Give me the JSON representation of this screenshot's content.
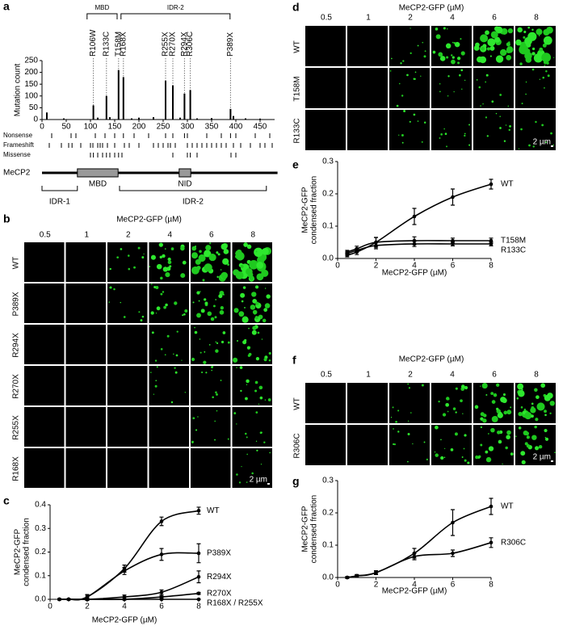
{
  "panel_labels": [
    "a",
    "b",
    "c",
    "d",
    "e",
    "f",
    "g"
  ],
  "chart_data": [
    {
      "type": "bar",
      "ylabel": "Mutation count",
      "x": [
        10,
        45,
        106,
        115,
        133,
        140,
        158,
        168,
        185,
        200,
        230,
        255,
        270,
        285,
        294,
        306,
        320,
        350,
        389,
        395,
        420,
        450
      ],
      "values": [
        30,
        5,
        60,
        8,
        100,
        10,
        210,
        180,
        5,
        8,
        10,
        165,
        145,
        8,
        110,
        125,
        5,
        6,
        45,
        15,
        5,
        4
      ],
      "color": "#000000",
      "xlim": [
        0,
        480
      ],
      "xticks": [
        0,
        50,
        100,
        150,
        200,
        250,
        300,
        350,
        400,
        450
      ],
      "ylim": [
        0,
        250
      ],
      "yticks": [
        0,
        50,
        100,
        150,
        200,
        250
      ],
      "annotations": [
        {
          "text": "R106W",
          "x": 106
        },
        {
          "text": "R133C",
          "x": 133
        },
        {
          "text": "T158M",
          "x": 158
        },
        {
          "text": "R168X",
          "x": 168
        },
        {
          "text": "R255X",
          "x": 255
        },
        {
          "text": "R270X",
          "x": 270
        },
        {
          "text": "R294X",
          "x": 294
        },
        {
          "text": "R306C",
          "x": 306
        },
        {
          "text": "P389X",
          "x": 389
        }
      ],
      "top_brackets": [
        {
          "label": "MBD",
          "start": 93,
          "end": 155
        },
        {
          "label": "IDR-2",
          "start": 163,
          "end": 388
        }
      ],
      "tracks": [
        {
          "name": "Nonsense",
          "positions": [
            20,
            60,
            70,
            110,
            130,
            150,
            168,
            190,
            220,
            255,
            270,
            294,
            300,
            340,
            370,
            389,
            400,
            440,
            470
          ]
        },
        {
          "name": "Frameshift",
          "positions": [
            15,
            40,
            55,
            62,
            80,
            100,
            105,
            115,
            120,
            125,
            135,
            150,
            170,
            180,
            200,
            230,
            240,
            250,
            260,
            265,
            275,
            300,
            310,
            320,
            330,
            340,
            350,
            360,
            370,
            380,
            395,
            410,
            430,
            450,
            460,
            475
          ]
        },
        {
          "name": "Missense",
          "positions": [
            100,
            106,
            115,
            125,
            133,
            140,
            150,
            158,
            165,
            270,
            300,
            306,
            320,
            390,
            400
          ]
        }
      ],
      "protein": {
        "name": "MeCP2",
        "length": 486,
        "domains": [
          {
            "label": "MBD",
            "start": 73,
            "end": 157
          },
          {
            "label": "NID",
            "start": 283,
            "end": 307
          }
        ],
        "regions": [
          {
            "label": "IDR-1",
            "start": 0,
            "end": 73
          },
          {
            "label": "IDR-2",
            "start": 160,
            "end": 463
          }
        ]
      }
    },
    {
      "type": "line",
      "xlabel": "MeCP2-GFP (µM)",
      "ylabel": [
        "MeCP2-GFP",
        "condensed fraction"
      ],
      "x": [
        0.5,
        1,
        2,
        4,
        6,
        8
      ],
      "xlim": [
        0,
        8
      ],
      "xticks": [
        0,
        2,
        4,
        6,
        8
      ],
      "ylim": [
        0,
        0.4
      ],
      "yticks": [
        {
          "value": 0,
          "label": "0.0"
        },
        0.1,
        0.2,
        0.3,
        0.4
      ],
      "series": [
        {
          "name": "WT",
          "color": "#000000",
          "values": [
            0,
            0,
            0.01,
            0.13,
            0.33,
            0.375
          ],
          "errors": [
            0.003,
            0.003,
            0.01,
            0.015,
            0.018,
            0.015
          ]
        },
        {
          "name": "P389X",
          "color": "#000000",
          "values": [
            0,
            0,
            0.01,
            0.12,
            0.19,
            0.195
          ],
          "errors": [
            0.003,
            0.003,
            0.008,
            0.015,
            0.025,
            0.04
          ]
        },
        {
          "name": "R294X",
          "color": "#000000",
          "values": [
            0,
            0,
            0,
            0.01,
            0.03,
            0.095
          ],
          "errors": [
            0.002,
            0.002,
            0.005,
            0.008,
            0.01,
            0.025
          ]
        },
        {
          "name": "R270X",
          "color": "#000000",
          "values": [
            0,
            0,
            0,
            0,
            0.01,
            0.025
          ],
          "errors": [
            0.002,
            0.002,
            0.002,
            0.003,
            0.004,
            0.004
          ]
        },
        {
          "name": "R168X / R255X",
          "color": "#000000",
          "values": [
            0,
            0,
            0,
            0,
            0,
            0
          ],
          "errors": [
            0.001,
            0.001,
            0.001,
            0.001,
            0.001,
            0.001
          ]
        }
      ]
    },
    {
      "type": "line",
      "xlabel": "MeCP2-GFP (µM)",
      "ylabel": [
        "MeCP2-GFP",
        "condensed fraction"
      ],
      "x": [
        0.5,
        1,
        2,
        4,
        6,
        8
      ],
      "xlim": [
        0,
        8
      ],
      "xticks": [
        0,
        2,
        4,
        6,
        8
      ],
      "ylim": [
        0,
        0.3
      ],
      "yticks": [
        {
          "value": 0,
          "label": "0.0"
        },
        0.1,
        0.2,
        0.3
      ],
      "series": [
        {
          "name": "WT",
          "color": "#000000",
          "values": [
            0.01,
            0.02,
            0.05,
            0.13,
            0.19,
            0.23
          ],
          "errors": [
            0.005,
            0.008,
            0.015,
            0.025,
            0.025,
            0.015
          ]
        },
        {
          "name": "T158M",
          "color": "#000000",
          "values": [
            0.02,
            0.03,
            0.05,
            0.055,
            0.055,
            0.055
          ],
          "errors": [
            0.005,
            0.008,
            0.015,
            0.012,
            0.008,
            0.008
          ]
        },
        {
          "name": "R133C",
          "color": "#000000",
          "values": [
            0.015,
            0.025,
            0.04,
            0.045,
            0.045,
            0.045
          ],
          "errors": [
            0.005,
            0.005,
            0.01,
            0.008,
            0.006,
            0.006
          ]
        }
      ]
    },
    {
      "type": "line",
      "xlabel": "MeCP2-GFP (µM)",
      "ylabel": [
        "MeCP2-GFP",
        "condensed fraction"
      ],
      "x": [
        0.5,
        1,
        2,
        4,
        6,
        8
      ],
      "xlim": [
        0,
        8
      ],
      "xticks": [
        0,
        2,
        4,
        6,
        8
      ],
      "ylim": [
        0,
        0.3
      ],
      "yticks": [
        {
          "value": 0,
          "label": "0.0"
        },
        0.1,
        0.2,
        0.3
      ],
      "series": [
        {
          "name": "WT",
          "color": "#000000",
          "values": [
            0,
            0.005,
            0.015,
            0.075,
            0.17,
            0.22
          ],
          "errors": [
            0.003,
            0.004,
            0.006,
            0.015,
            0.04,
            0.025
          ]
        },
        {
          "name": "R306C",
          "color": "#000000",
          "values": [
            0,
            0.005,
            0.015,
            0.065,
            0.075,
            0.108
          ],
          "errors": [
            0.002,
            0.003,
            0.005,
            0.01,
            0.01,
            0.015
          ]
        }
      ]
    }
  ],
  "micrographs": [
    {
      "title": "MeCP2-GFP (µM)",
      "columns": [
        0.5,
        1,
        2,
        4,
        6,
        8
      ],
      "rows": [
        "WT",
        "P389X",
        "R294X",
        "R270X",
        "R255X",
        "R168X"
      ],
      "scale_bar": "2 µm"
    },
    {
      "title": "MeCP2-GFP (µM)",
      "columns": [
        0.5,
        1,
        2,
        4,
        6,
        8
      ],
      "rows": [
        "WT",
        "T158M",
        "R133C"
      ],
      "scale_bar": "2 µm"
    },
    {
      "title": "MeCP2-GFP (µM)",
      "columns": [
        0.5,
        1,
        2,
        4,
        6,
        8
      ],
      "rows": [
        "WT",
        "R306C"
      ],
      "scale_bar": "2 µm"
    }
  ]
}
